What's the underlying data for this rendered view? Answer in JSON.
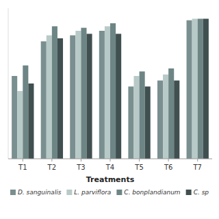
{
  "chart_data": {
    "type": "bar",
    "xlabel": "Treatments",
    "categories": [
      "T1",
      "T2",
      "T3",
      "T4",
      "T5",
      "T6",
      "T7"
    ],
    "series": [
      {
        "name": "D. sanguinalis",
        "color": "#7a8f8f",
        "values": [
          55,
          78,
          82,
          85,
          48,
          52,
          92
        ]
      },
      {
        "name": "L. parviflora",
        "color": "#b8cac8",
        "values": [
          45,
          82,
          85,
          88,
          55,
          56,
          93
        ]
      },
      {
        "name": "C. bonplandianum",
        "color": "#6e8585",
        "values": [
          62,
          88,
          87,
          90,
          58,
          60,
          93
        ]
      },
      {
        "name": "C. sp",
        "color": "#404f50",
        "values": [
          50,
          80,
          83,
          83,
          48,
          52,
          93
        ]
      }
    ],
    "ylim": [
      0,
      100
    ],
    "tick_labels": "x",
    "grid": false,
    "legend": "bottom"
  }
}
